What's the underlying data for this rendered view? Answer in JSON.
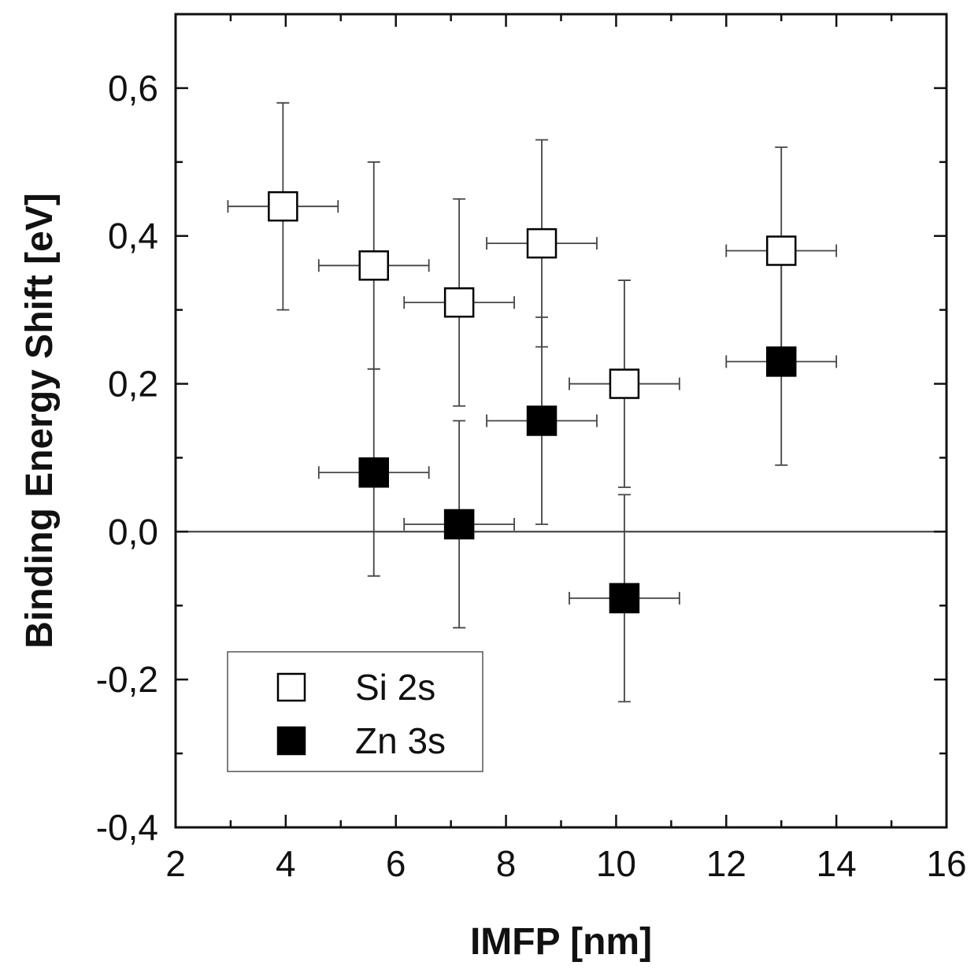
{
  "chart_data": {
    "type": "scatter",
    "xlabel": "IMFP [nm]",
    "ylabel": "Binding Energy Shift [eV]",
    "xlim": [
      2,
      16
    ],
    "ylim": [
      -0.4,
      0.7
    ],
    "x_ticks": [
      2,
      4,
      6,
      8,
      10,
      12,
      14,
      16
    ],
    "x_tick_labels": [
      "2",
      "4",
      "6",
      "8",
      "10",
      "12",
      "14",
      "16"
    ],
    "y_ticks": [
      -0.4,
      -0.2,
      0.0,
      0.2,
      0.4,
      0.6
    ],
    "y_tick_labels": [
      "-0,4",
      "-0,2",
      "0,0",
      "0,2",
      "0,4",
      "0,6"
    ],
    "reference_line_y": 0.0,
    "grid": false,
    "legend_position": "bottom-left",
    "series": [
      {
        "name": "Si 2s",
        "marker": "open-square",
        "color": "#000000",
        "points": [
          {
            "x": 3.95,
            "y": 0.44,
            "xerr": 1.0,
            "yerr": 0.14
          },
          {
            "x": 5.6,
            "y": 0.36,
            "xerr": 1.0,
            "yerr": 0.14
          },
          {
            "x": 7.15,
            "y": 0.31,
            "xerr": 1.0,
            "yerr": 0.14
          },
          {
            "x": 8.65,
            "y": 0.39,
            "xerr": 1.0,
            "yerr": 0.14
          },
          {
            "x": 10.15,
            "y": 0.2,
            "xerr": 1.0,
            "yerr": 0.14
          },
          {
            "x": 13.0,
            "y": 0.38,
            "xerr": 1.0,
            "yerr": 0.14
          }
        ]
      },
      {
        "name": "Zn 3s",
        "marker": "filled-square",
        "color": "#000000",
        "points": [
          {
            "x": 5.6,
            "y": 0.08,
            "xerr": 1.0,
            "yerr": 0.14
          },
          {
            "x": 7.15,
            "y": 0.01,
            "xerr": 1.0,
            "yerr": 0.14
          },
          {
            "x": 8.65,
            "y": 0.15,
            "xerr": 1.0,
            "yerr": 0.14
          },
          {
            "x": 10.15,
            "y": -0.09,
            "xerr": 1.0,
            "yerr": 0.14
          },
          {
            "x": 13.0,
            "y": 0.23,
            "xerr": 1.0,
            "yerr": 0.14
          }
        ]
      }
    ]
  }
}
